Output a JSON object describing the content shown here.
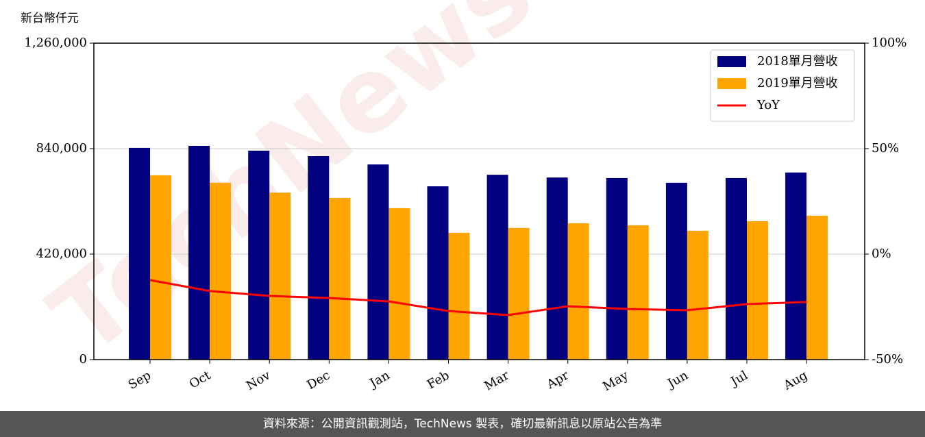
{
  "chart_data": {
    "type": "bar",
    "y_label": "新台幣仟元",
    "watermark": "TechNews",
    "categories": [
      "Sep",
      "Oct",
      "Nov",
      "Dec",
      "Jan",
      "Feb",
      "Mar",
      "Apr",
      "May",
      "Jun",
      "Jul",
      "Aug"
    ],
    "series": [
      {
        "name": "2018單月營收",
        "type": "bar",
        "color": "#000080",
        "values": [
          843000,
          851000,
          832000,
          810000,
          777000,
          690000,
          736000,
          725000,
          723000,
          704000,
          723000,
          745000
        ]
      },
      {
        "name": "2019單月營收",
        "type": "bar",
        "color": "#ffa500",
        "values": [
          734000,
          704000,
          665000,
          644000,
          603000,
          505000,
          524000,
          543000,
          535000,
          513000,
          551000,
          573000
        ]
      },
      {
        "name": "YoY",
        "type": "line",
        "axis": "y2",
        "color": "#ff0000",
        "values": [
          -12.3,
          -17.5,
          -19.8,
          -20.8,
          -22.4,
          -27,
          -28.9,
          -24.7,
          -26,
          -26.6,
          -23.7,
          -22.7
        ]
      }
    ],
    "ylim": [
      0,
      1260000
    ],
    "yticks": [
      0,
      {
        "value": 420000,
        "label": "420,000"
      },
      {
        "value": 840000,
        "label": "840,000"
      },
      {
        "value": 1260000,
        "label": "1,260,000"
      }
    ],
    "y2lim": [
      -50,
      100
    ],
    "y2ticks": [
      {
        "value": -50,
        "label": "-50%"
      },
      {
        "value": 0,
        "label": "0%"
      },
      {
        "value": 50,
        "label": "50%"
      },
      {
        "value": 100,
        "label": "100%"
      }
    ],
    "grid": true,
    "legend": "upper right"
  },
  "footer": "資料來源：公開資訊觀測站，TechNews 製表，確切最新訊息以原站公告為準"
}
